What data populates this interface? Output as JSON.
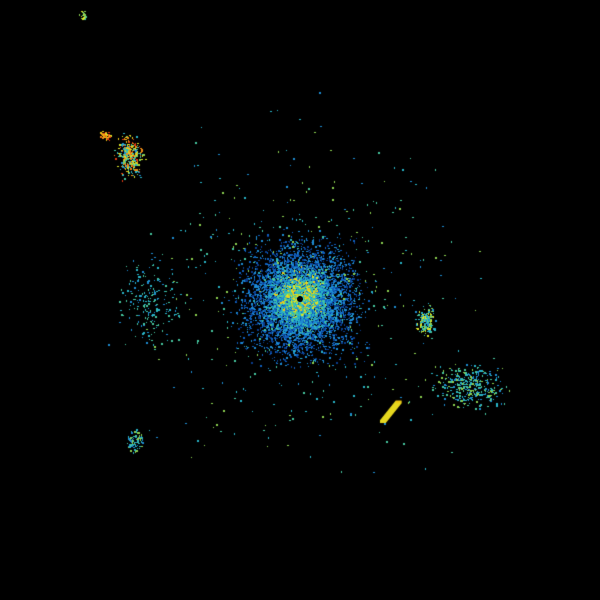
{
  "background_color": "#000000",
  "reflectivity_palette": [
    "#0a3c8c",
    "#0f5fbe",
    "#1e8cd2",
    "#28b4c8",
    "#46c8a0",
    "#8cd250",
    "#dce628",
    "#f0c814",
    "#f08c14",
    "#e63c14"
  ]
}
